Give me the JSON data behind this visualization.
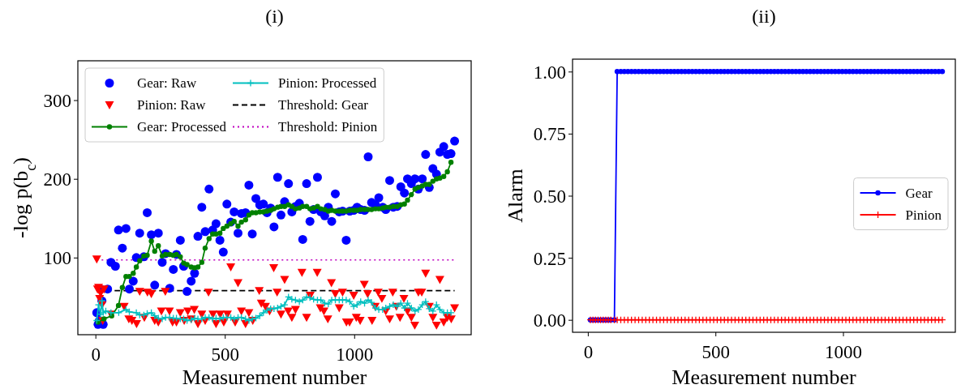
{
  "chart_data": [
    {
      "type": "line",
      "title": "(i)",
      "xlabel": "Measurement number",
      "ylabel": "-log p(b$_{c}$)",
      "xlim": [
        -68,
        1452
      ],
      "ylim": [
        2,
        350
      ],
      "xticks": [
        0,
        500,
        1000
      ],
      "yticks": [
        100,
        200,
        300
      ],
      "legend": "top left",
      "series": [
        {
          "name": "Gear: Raw",
          "type": "scatter",
          "marker": "circle",
          "color": "#0000ff",
          "x": [
            5,
            10,
            15,
            20,
            25,
            30,
            47,
            60,
            77,
            89,
            104,
            118,
            131,
            146,
            158,
            171,
            187,
            200,
            216,
            229,
            243,
            258,
            271,
            287,
            301,
            313,
            328,
            341,
            354,
            370,
            383,
            396,
            411,
            424,
            439,
            453,
            466,
            481,
            494,
            508,
            523,
            536,
            551,
            564,
            580,
            593,
            606,
            620,
            635,
            649,
            663,
            677,
            690,
            704,
            717,
            731,
            746,
            759,
            773,
            788,
            801,
            816,
            829,
            843,
            858,
            871,
            886,
            900,
            913,
            927,
            942,
            955,
            969,
            983,
            998,
            1011,
            1025,
            1040,
            1054,
            1067,
            1082,
            1095,
            1110,
            1122,
            1137,
            1151,
            1166,
            1180,
            1194,
            1206,
            1221,
            1235,
            1248,
            1263,
            1276,
            1290,
            1304,
            1318,
            1331,
            1346,
            1360,
            1374,
            1388
          ],
          "values": [
            30,
            15,
            20,
            60,
            45,
            15,
            60,
            94,
            89,
            135,
            112,
            137,
            60,
            70,
            100,
            131,
            101,
            157,
            129,
            65,
            131,
            94,
            105,
            61,
            85,
            104,
            122,
            89,
            57,
            70,
            80,
            127,
            164,
            133,
            187,
            135,
            143,
            122,
            107,
            168,
            145,
            158,
            131,
            156,
            157,
            192,
            130,
            175,
            167,
            168,
            157,
            163,
            139,
            202,
            154,
            171,
            194,
            158,
            165,
            169,
            123,
            194,
            146,
            161,
            202,
            158,
            153,
            164,
            146,
            181,
            158,
            159,
            122,
            159,
            160,
            164,
            161,
            160,
            228,
            170,
            167,
            176,
            164,
            161,
            198,
            164,
            165,
            190,
            182,
            200,
            194,
            200,
            187,
            200,
            231,
            189,
            213,
            206,
            234,
            241,
            231,
            232,
            248
          ]
        },
        {
          "name": "Pinion: Raw",
          "type": "scatter",
          "marker": "triangle",
          "color": "#ff0000",
          "x": [
            5,
            8,
            12,
            16,
            20,
            25,
            28,
            33,
            60,
            111,
            129,
            141,
            159,
            171,
            189,
            201,
            216,
            229,
            243,
            255,
            270,
            286,
            298,
            313,
            328,
            343,
            357,
            370,
            382,
            396,
            411,
            424,
            437,
            454,
            466,
            482,
            496,
            510,
            523,
            540,
            551,
            564,
            580,
            593,
            608,
            633,
            641,
            657,
            673,
            689,
            702,
            717,
            731,
            745,
            759,
            773,
            798,
            816,
            830,
            857,
            869,
            883,
            898,
            912,
            927,
            942,
            955,
            970,
            982,
            998,
            1008,
            1023,
            1039,
            1052,
            1069,
            1081,
            1093,
            1107,
            1122,
            1137,
            1149,
            1163,
            1177,
            1192,
            1206,
            1221,
            1234,
            1248,
            1261,
            1276,
            1290,
            1304,
            1318,
            1331,
            1346,
            1360,
            1375,
            1388
          ],
          "values": [
            98,
            60,
            62,
            48,
            55,
            40,
            20,
            60,
            28,
            38,
            22,
            20,
            16,
            57,
            24,
            56,
            54,
            20,
            18,
            32,
            57,
            32,
            18,
            18,
            30,
            20,
            32,
            22,
            34,
            16,
            28,
            20,
            56,
            28,
            16,
            28,
            18,
            28,
            88,
            18,
            68,
            32,
            16,
            30,
            20,
            58,
            42,
            38,
            32,
            87,
            56,
            28,
            72,
            32,
            24,
            34,
            81,
            24,
            52,
            81,
            36,
            32,
            22,
            68,
            54,
            36,
            56,
            18,
            18,
            52,
            24,
            20,
            66,
            54,
            20,
            38,
            56,
            48,
            32,
            22,
            56,
            38,
            24,
            48,
            32,
            24,
            14,
            56,
            56,
            80,
            38,
            24,
            14,
            72,
            18,
            24,
            22,
            36
          ]
        },
        {
          "name": "Gear: Processed",
          "type": "line",
          "marker": "circle",
          "color": "#008000",
          "x": [
            10,
            33,
            63,
            89,
            104,
            118,
            131,
            146,
            158,
            171,
            187,
            200,
            216,
            229,
            243,
            258,
            271,
            287,
            301,
            313,
            328,
            341,
            354,
            370,
            383,
            396,
            411,
            424,
            439,
            453,
            466,
            481,
            494,
            508,
            523,
            536,
            551,
            564,
            580,
            593,
            606,
            620,
            635,
            649,
            663,
            677,
            690,
            704,
            717,
            731,
            746,
            759,
            773,
            788,
            801,
            816,
            829,
            843,
            858,
            871,
            886,
            900,
            913,
            927,
            942,
            955,
            969,
            983,
            998,
            1011,
            1025,
            1040,
            1054,
            1067,
            1082,
            1095,
            1110,
            1122,
            1137,
            1151,
            1166,
            1180,
            1194,
            1206,
            1221,
            1235,
            1248,
            1263,
            1276,
            1290,
            1304,
            1318,
            1331,
            1346,
            1360,
            1374
          ],
          "values": [
            18,
            22,
            26,
            39,
            62,
            76,
            76,
            80,
            88,
            96,
            102,
            103,
            121,
            108,
            115,
            102,
            104,
            104,
            103,
            104,
            101,
            93,
            91,
            88,
            87,
            88,
            94,
            112,
            124,
            130,
            130,
            131,
            137,
            140,
            143,
            146,
            140,
            145,
            148,
            154,
            157,
            157,
            158,
            158,
            159,
            160,
            162,
            164,
            165,
            165,
            167,
            165,
            162,
            163,
            165,
            165,
            162,
            163,
            165,
            162,
            161,
            159,
            160,
            159,
            159,
            159,
            159,
            160,
            160,
            160,
            161,
            161,
            161,
            161,
            162,
            162,
            163,
            164,
            164,
            165,
            165,
            167,
            168,
            173,
            180,
            187,
            189,
            191,
            193,
            193,
            197,
            200,
            201,
            203,
            209,
            221
          ]
        },
        {
          "name": "Pinion: Processed",
          "type": "line",
          "marker": "cross",
          "color": "#00bfbf",
          "x": [
            5,
            12,
            20,
            25,
            30,
            40,
            60,
            90,
            118,
            131,
            158,
            171,
            187,
            200,
            216,
            229,
            243,
            258,
            271,
            287,
            301,
            313,
            328,
            341,
            354,
            370,
            383,
            396,
            411,
            424,
            439,
            453,
            466,
            481,
            494,
            508,
            523,
            536,
            551,
            564,
            580,
            593,
            606,
            620,
            635,
            649,
            663,
            677,
            690,
            704,
            717,
            731,
            746,
            759,
            773,
            788,
            801,
            816,
            829,
            843,
            858,
            871,
            886,
            900,
            913,
            927,
            942,
            955,
            969,
            983,
            998,
            1011,
            1025,
            1040,
            1054,
            1067,
            1082,
            1095,
            1110,
            1122,
            1137,
            1151,
            1166,
            1180,
            1194,
            1206,
            1221,
            1235,
            1248,
            1263,
            1276,
            1290,
            1304,
            1318,
            1331,
            1346,
            1360,
            1374
          ],
          "values": [
            20,
            40,
            28,
            45,
            30,
            32,
            30,
            30,
            34,
            31,
            30,
            27,
            27,
            29,
            30,
            26,
            23,
            22,
            24,
            24,
            23,
            23,
            22,
            22,
            20,
            21,
            23,
            22,
            22,
            24,
            24,
            22,
            23,
            22,
            24,
            24,
            24,
            22,
            24,
            24,
            22,
            20,
            22,
            23,
            26,
            30,
            33,
            35,
            35,
            36,
            38,
            40,
            50,
            47,
            46,
            44,
            46,
            50,
            49,
            47,
            46,
            46,
            42,
            41,
            46,
            46,
            46,
            46,
            46,
            44,
            38,
            40,
            44,
            42,
            46,
            43,
            36,
            34,
            34,
            36,
            38,
            40,
            38,
            42,
            36,
            42,
            36,
            32,
            34,
            40,
            44,
            35,
            32,
            40,
            34,
            30,
            30,
            30
          ]
        }
      ],
      "ref_lines": [
        {
          "axis": "y",
          "value": 58,
          "label": "Threshold: Gear",
          "color": "#000000",
          "line_style": "dashed"
        },
        {
          "axis": "y",
          "value": 97,
          "label": "Threshold: Pinion",
          "color": "#bf00bf",
          "line_style": "dotted"
        }
      ]
    },
    {
      "type": "line",
      "title": "(ii)",
      "xlabel": "Measurement number",
      "ylabel": "Alarm",
      "xlim": [
        -60,
        1440
      ],
      "ylim": [
        -0.05,
        1.05
      ],
      "xticks": [
        0,
        500,
        1000
      ],
      "yticks": [
        {
          "value": 0,
          "label": "0.00"
        },
        {
          "value": 0.25,
          "label": "0.25"
        },
        {
          "value": 0.5,
          "label": "0.50"
        },
        {
          "value": 0.75,
          "label": "0.75"
        },
        {
          "value": 1,
          "label": "1.00"
        }
      ],
      "legend": "right",
      "x": [
        10,
        20,
        30,
        40,
        50,
        60,
        70,
        80,
        90,
        104,
        115,
        129,
        143,
        157,
        171,
        185,
        199,
        213,
        227,
        241,
        255,
        269,
        283,
        297,
        311,
        325,
        339,
        353,
        367,
        381,
        395,
        409,
        423,
        437,
        451,
        465,
        479,
        493,
        507,
        521,
        535,
        549,
        563,
        577,
        591,
        605,
        619,
        633,
        647,
        661,
        675,
        689,
        703,
        717,
        731,
        745,
        759,
        773,
        787,
        801,
        815,
        829,
        843,
        857,
        871,
        885,
        899,
        913,
        927,
        941,
        955,
        969,
        983,
        997,
        1011,
        1025,
        1039,
        1053,
        1067,
        1081,
        1095,
        1109,
        1123,
        1137,
        1151,
        1165,
        1179,
        1193,
        1207,
        1221,
        1235,
        1249,
        1263,
        1277,
        1291,
        1305,
        1319,
        1333,
        1347,
        1361,
        1375,
        1389
      ],
      "series": [
        {
          "name": "Gear",
          "marker": "circle",
          "color": "#0000ff",
          "values": [
            0,
            0,
            0,
            0,
            0,
            0,
            0,
            0,
            0,
            0,
            1,
            1,
            1,
            1,
            1,
            1,
            1,
            1,
            1,
            1,
            1,
            1,
            1,
            1,
            1,
            1,
            1,
            1,
            1,
            1,
            1,
            1,
            1,
            1,
            1,
            1,
            1,
            1,
            1,
            1,
            1,
            1,
            1,
            1,
            1,
            1,
            1,
            1,
            1,
            1,
            1,
            1,
            1,
            1,
            1,
            1,
            1,
            1,
            1,
            1,
            1,
            1,
            1,
            1,
            1,
            1,
            1,
            1,
            1,
            1,
            1,
            1,
            1,
            1,
            1,
            1,
            1,
            1,
            1,
            1,
            1,
            1,
            1,
            1,
            1,
            1,
            1,
            1,
            1,
            1,
            1,
            1,
            1,
            1,
            1,
            1,
            1,
            1,
            1,
            1,
            1,
            1
          ]
        },
        {
          "name": "Pinion",
          "marker": "cross",
          "color": "#ff0000",
          "values": [
            0,
            0,
            0,
            0,
            0,
            0,
            0,
            0,
            0,
            0,
            0,
            0,
            0,
            0,
            0,
            0,
            0,
            0,
            0,
            0,
            0,
            0,
            0,
            0,
            0,
            0,
            0,
            0,
            0,
            0,
            0,
            0,
            0,
            0,
            0,
            0,
            0,
            0,
            0,
            0,
            0,
            0,
            0,
            0,
            0,
            0,
            0,
            0,
            0,
            0,
            0,
            0,
            0,
            0,
            0,
            0,
            0,
            0,
            0,
            0,
            0,
            0,
            0,
            0,
            0,
            0,
            0,
            0,
            0,
            0,
            0,
            0,
            0,
            0,
            0,
            0,
            0,
            0,
            0,
            0,
            0,
            0,
            0,
            0,
            0,
            0,
            0,
            0,
            0,
            0,
            0,
            0,
            0,
            0,
            0,
            0,
            0,
            0,
            0,
            0,
            0,
            0
          ]
        }
      ]
    }
  ]
}
